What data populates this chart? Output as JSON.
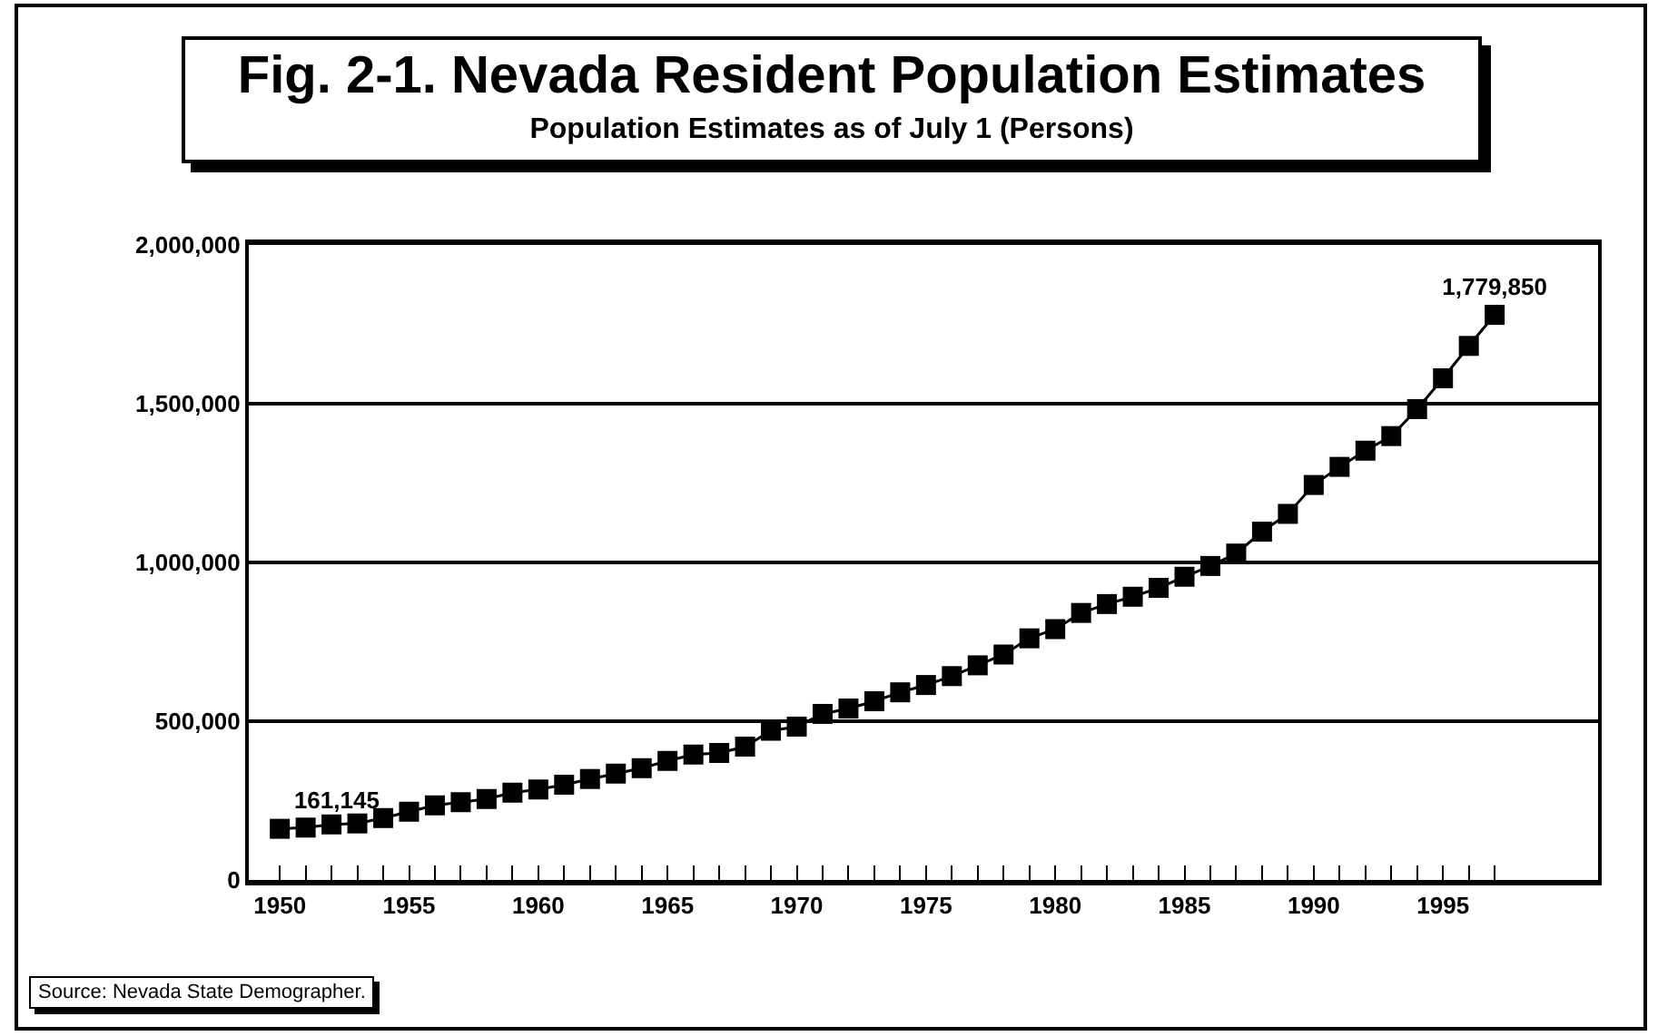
{
  "chart_data": {
    "type": "line",
    "title": "Fig. 2-1. Nevada Resident Population Estimates",
    "subtitle": "Population Estimates as of July 1 (Persons)",
    "x": [
      1950,
      1951,
      1952,
      1953,
      1954,
      1955,
      1956,
      1957,
      1958,
      1959,
      1960,
      1961,
      1962,
      1963,
      1964,
      1965,
      1966,
      1967,
      1968,
      1969,
      1970,
      1971,
      1972,
      1973,
      1974,
      1975,
      1976,
      1977,
      1978,
      1979,
      1980,
      1981,
      1982,
      1983,
      1984,
      1985,
      1986,
      1987,
      1988,
      1989,
      1990,
      1991,
      1992,
      1993,
      1994,
      1995,
      1996,
      1997
    ],
    "series": [
      {
        "color": "#000000",
        "values": [
          161145,
          165000,
          175000,
          178000,
          195000,
          215000,
          235000,
          245000,
          255000,
          275000,
          285000,
          300000,
          318000,
          335000,
          352000,
          375000,
          395000,
          400000,
          420000,
          470000,
          483000,
          523000,
          540000,
          563000,
          591000,
          614000,
          642000,
          676000,
          710000,
          761000,
          790000,
          841000,
          869000,
          892000,
          920000,
          955000,
          989000,
          1028000,
          1097000,
          1153000,
          1244000,
          1301000,
          1352000,
          1398000,
          1483000,
          1580000,
          1682000,
          1779850
        ],
        "value_labels": [
          "161,145",
          null,
          null,
          null,
          null,
          null,
          null,
          null,
          null,
          null,
          null,
          null,
          null,
          null,
          null,
          null,
          null,
          null,
          null,
          null,
          null,
          null,
          null,
          null,
          null,
          null,
          null,
          null,
          null,
          null,
          null,
          null,
          null,
          null,
          null,
          null,
          null,
          null,
          null,
          null,
          null,
          null,
          null,
          null,
          null,
          null,
          null,
          "1,779,850"
        ]
      }
    ],
    "xlim": [
      1948.8,
      2001
    ],
    "xticks": [
      1950,
      {
        "value": 1951,
        "label": null
      },
      {
        "value": 1952,
        "label": null
      },
      {
        "value": 1953,
        "label": null
      },
      {
        "value": 1954,
        "label": null
      },
      1955,
      {
        "value": 1956,
        "label": null
      },
      {
        "value": 1957,
        "label": null
      },
      {
        "value": 1958,
        "label": null
      },
      {
        "value": 1959,
        "label": null
      },
      1960,
      {
        "value": 1961,
        "label": null
      },
      {
        "value": 1962,
        "label": null
      },
      {
        "value": 1963,
        "label": null
      },
      {
        "value": 1964,
        "label": null
      },
      1965,
      {
        "value": 1966,
        "label": null
      },
      {
        "value": 1967,
        "label": null
      },
      {
        "value": 1968,
        "label": null
      },
      {
        "value": 1969,
        "label": null
      },
      1970,
      {
        "value": 1971,
        "label": null
      },
      {
        "value": 1972,
        "label": null
      },
      {
        "value": 1973,
        "label": null
      },
      {
        "value": 1974,
        "label": null
      },
      1975,
      {
        "value": 1976,
        "label": null
      },
      {
        "value": 1977,
        "label": null
      },
      {
        "value": 1978,
        "label": null
      },
      {
        "value": 1979,
        "label": null
      },
      1980,
      {
        "value": 1981,
        "label": null
      },
      {
        "value": 1982,
        "label": null
      },
      {
        "value": 1983,
        "label": null
      },
      {
        "value": 1984,
        "label": null
      },
      1985,
      {
        "value": 1986,
        "label": null
      },
      {
        "value": 1987,
        "label": null
      },
      {
        "value": 1988,
        "label": null
      },
      {
        "value": 1989,
        "label": null
      },
      1990,
      {
        "value": 1991,
        "label": null
      },
      {
        "value": 1992,
        "label": null
      },
      {
        "value": 1993,
        "label": null
      },
      {
        "value": 1994,
        "label": null
      },
      1995,
      {
        "value": 1996,
        "label": null
      },
      {
        "value": 1997,
        "label": null
      }
    ],
    "ylim": [
      0,
      2000000
    ],
    "yticks": [
      0,
      {
        "value": 500000,
        "label": "500,000"
      },
      {
        "value": 1000000,
        "label": "1,000,000"
      },
      {
        "value": 1500000,
        "label": "1,500,000"
      },
      {
        "value": 2000000,
        "label": "2,000,000"
      }
    ],
    "grid": "y",
    "legend": false,
    "marker": "square",
    "line_style": "solid",
    "annotations": [
      "Source:  Nevada State Demographer."
    ]
  }
}
